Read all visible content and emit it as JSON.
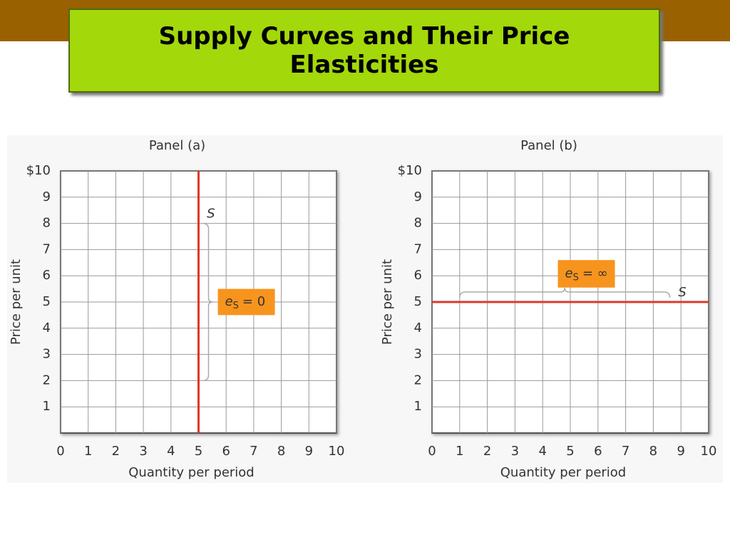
{
  "title": "Supply Curves and Their Price Elasticities",
  "chart_data": [
    {
      "type": "line",
      "title": "Panel (a)",
      "x_label": "Quantity per period",
      "y_label": "Price per unit",
      "xlim": [
        0,
        10
      ],
      "ylim": [
        0,
        10
      ],
      "xticks": [
        0,
        1,
        2,
        3,
        4,
        5,
        6,
        7,
        8,
        9,
        10
      ],
      "yticks": [
        1,
        2,
        3,
        4,
        5,
        6,
        7,
        8,
        9,
        {
          "value": 10,
          "label": "$10"
        }
      ],
      "grid": true,
      "series": [
        {
          "name": "S",
          "color": "#d83b2a",
          "x": [
            5,
            5
          ],
          "values": [
            0,
            10
          ]
        }
      ],
      "annotation": {
        "symbol": "e",
        "subscript": "S",
        "relation": "= 0",
        "color": "#f7941d"
      }
    },
    {
      "type": "line",
      "title": "Panel (b)",
      "x_label": "Quantity per period",
      "y_label": "Price per unit",
      "xlim": [
        0,
        10
      ],
      "ylim": [
        0,
        10
      ],
      "xticks": [
        0,
        1,
        2,
        3,
        4,
        5,
        6,
        7,
        8,
        9,
        10
      ],
      "yticks": [
        1,
        2,
        3,
        4,
        5,
        6,
        7,
        8,
        9,
        {
          "value": 10,
          "label": "$10"
        }
      ],
      "grid": true,
      "series": [
        {
          "name": "S",
          "color": "#d83b2a",
          "x": [
            0,
            10
          ],
          "values": [
            5,
            5
          ]
        }
      ],
      "annotation": {
        "symbol": "e",
        "subscript": "S",
        "relation": "= ∞",
        "color": "#f7941d"
      }
    }
  ]
}
